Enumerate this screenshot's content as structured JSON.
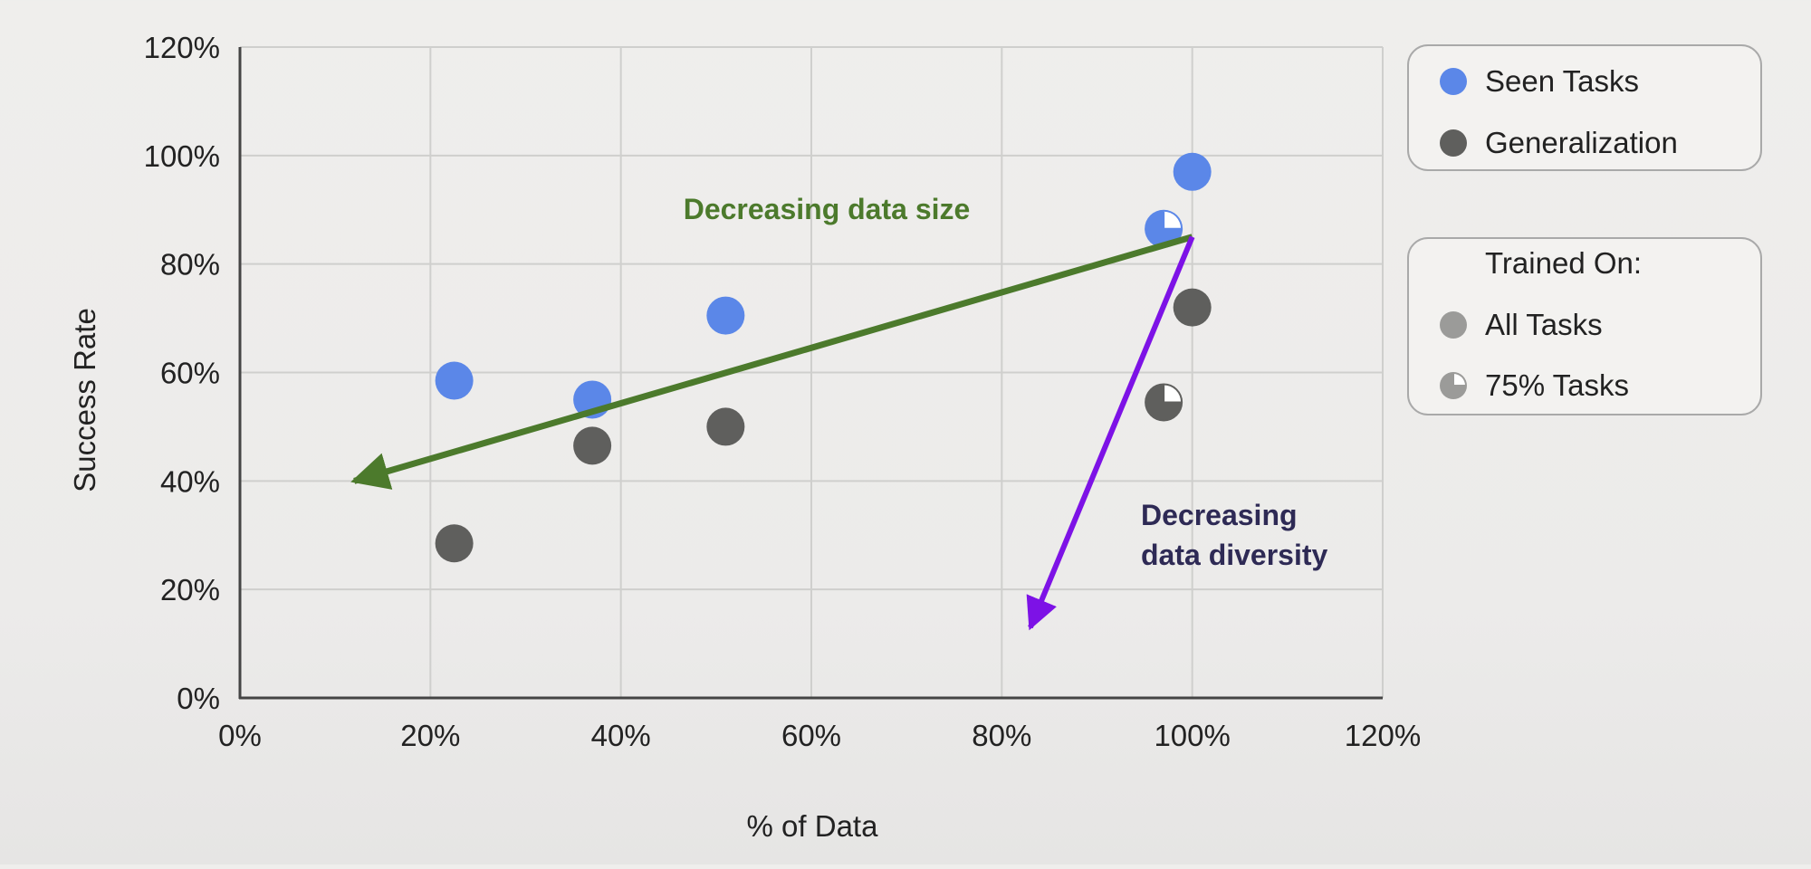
{
  "chart_data": {
    "type": "scatter",
    "xlabel": "% of Data",
    "ylabel": "Success Rate",
    "xlim": [
      0,
      120
    ],
    "ylim": [
      0,
      120
    ],
    "x_ticks": [
      "0%",
      "20%",
      "40%",
      "60%",
      "80%",
      "100%",
      "120%"
    ],
    "y_ticks": [
      "0%",
      "20%",
      "40%",
      "60%",
      "80%",
      "100%",
      "120%"
    ],
    "grid": true,
    "series": [
      {
        "name": "Seen Tasks",
        "color": "#5b87e8",
        "points": [
          {
            "x": 22.5,
            "y": 58.5,
            "trained_on": "All Tasks"
          },
          {
            "x": 37,
            "y": 55,
            "trained_on": "All Tasks"
          },
          {
            "x": 51,
            "y": 70.5,
            "trained_on": "All Tasks"
          },
          {
            "x": 97,
            "y": 86.5,
            "trained_on": "75% Tasks"
          },
          {
            "x": 100,
            "y": 97,
            "trained_on": "All Tasks"
          }
        ]
      },
      {
        "name": "Generalization",
        "color": "#5f5f5d",
        "points": [
          {
            "x": 22.5,
            "y": 28.5,
            "trained_on": "All Tasks"
          },
          {
            "x": 37,
            "y": 46.5,
            "trained_on": "All Tasks"
          },
          {
            "x": 51,
            "y": 50,
            "trained_on": "All Tasks"
          },
          {
            "x": 97,
            "y": 54.5,
            "trained_on": "75% Tasks"
          },
          {
            "x": 100,
            "y": 72,
            "trained_on": "All Tasks"
          }
        ]
      }
    ],
    "annotations": [
      {
        "text": "Decreasing data size",
        "color": "#4c7a2c",
        "arrow_from": [
          100,
          85
        ],
        "arrow_to": [
          12,
          40
        ]
      },
      {
        "text_lines": [
          "Decreasing",
          "data diversity"
        ],
        "color": "#7d12e6",
        "text_color": "#2e2a55",
        "arrow_from": [
          100,
          85
        ],
        "arrow_to": [
          83,
          13
        ]
      }
    ],
    "legend_series": {
      "placement": "top-right",
      "items": [
        {
          "label": "Seen Tasks",
          "color": "#5b87e8"
        },
        {
          "label": "Generalization",
          "color": "#5f5f5d"
        }
      ]
    },
    "legend_training": {
      "placement": "right",
      "title": "Trained On:",
      "items": [
        {
          "label": "All Tasks",
          "marker": "full"
        },
        {
          "label": "75% Tasks",
          "marker": "three-quarter"
        }
      ]
    }
  }
}
